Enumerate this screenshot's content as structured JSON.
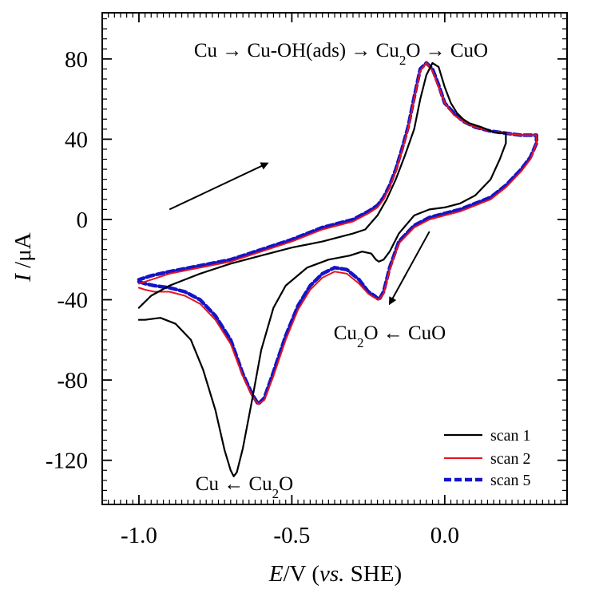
{
  "chart_data": {
    "type": "line",
    "xlabel": {
      "italic": "E",
      "rest": "/V (",
      "italic2": "vs.",
      "tail": " SHE)"
    },
    "ylabel": {
      "italic": "I",
      "rest": " /μA"
    },
    "xlim": [
      -1.12,
      0.4
    ],
    "ylim": [
      -142,
      103
    ],
    "x_ticks": [
      -1.0,
      -0.5,
      0.0
    ],
    "x_tick_labels": [
      "-1.0",
      "-0.5",
      "0.0"
    ],
    "y_ticks": [
      -120,
      -80,
      -40,
      0,
      40,
      80
    ],
    "y_tick_labels": [
      "-120",
      "-80",
      "-40",
      "0",
      "40",
      "80"
    ],
    "grid": false,
    "legend_position": "bottom-right",
    "colors": {
      "scan1": "#000000",
      "scan2": "#e8141e",
      "scan5": "#1414c8"
    },
    "annotations": {
      "oxidation": {
        "a": "Cu → Cu-OH(ads) → Cu",
        "sub": "2",
        "b": "O → CuO"
      },
      "reduction1": {
        "a": "Cu",
        "sub": "2",
        "b": "O ← CuO"
      },
      "reduction2": {
        "a": "Cu ← Cu",
        "sub": "2",
        "b": "O"
      }
    },
    "arrows": [
      {
        "from": [
          -0.9,
          5
        ],
        "to": [
          -0.58,
          28
        ]
      },
      {
        "from": [
          -0.05,
          -6
        ],
        "to": [
          -0.18,
          -42
        ]
      }
    ],
    "series": [
      {
        "name": "scan 1",
        "style": "solid",
        "width": 2.2,
        "x": [
          -1.0,
          -1.0,
          -0.98,
          -0.93,
          -0.88,
          -0.83,
          -0.79,
          -0.75,
          -0.72,
          -0.7,
          -0.69,
          -0.68,
          -0.66,
          -0.63,
          -0.6,
          -0.56,
          -0.52,
          -0.45,
          -0.38,
          -0.31,
          -0.27,
          -0.24,
          -0.225,
          -0.215,
          -0.2,
          -0.18,
          -0.15,
          -0.1,
          -0.05,
          0.0,
          0.05,
          0.1,
          0.15,
          0.18,
          0.2,
          0.2,
          0.18,
          0.15,
          0.12,
          0.1,
          0.08,
          0.06,
          0.04,
          0.02,
          0.0,
          -0.02,
          -0.04,
          -0.06,
          -0.08,
          -0.1,
          -0.13,
          -0.16,
          -0.19,
          -0.22,
          -0.26,
          -0.3,
          -0.4,
          -0.5,
          -0.6,
          -0.7,
          -0.8,
          -0.9,
          -0.96,
          -1.0
        ],
        "y": [
          -50,
          -50,
          -50,
          -49,
          -52,
          -60,
          -75,
          -95,
          -115,
          -125,
          -128,
          -126,
          -114,
          -90,
          -65,
          -44,
          -33,
          -24,
          -20,
          -18,
          -16,
          -17,
          -20,
          -21,
          -20,
          -16,
          -7,
          2,
          5,
          6,
          8,
          12,
          20,
          30,
          38,
          43,
          43,
          44,
          46,
          47,
          48,
          50,
          53,
          58,
          66,
          76,
          78,
          72,
          60,
          45,
          32,
          20,
          10,
          2,
          -5,
          -7,
          -11,
          -14,
          -18,
          -22,
          -27,
          -33,
          -38,
          -44
        ]
      },
      {
        "name": "scan 2",
        "style": "solid",
        "width": 2.0,
        "x": [
          -1.0,
          -0.98,
          -0.95,
          -0.9,
          -0.85,
          -0.8,
          -0.75,
          -0.7,
          -0.66,
          -0.63,
          -0.61,
          -0.59,
          -0.56,
          -0.52,
          -0.48,
          -0.44,
          -0.4,
          -0.36,
          -0.32,
          -0.28,
          -0.25,
          -0.23,
          -0.215,
          -0.2,
          -0.18,
          -0.15,
          -0.1,
          -0.05,
          0.0,
          0.05,
          0.1,
          0.15,
          0.2,
          0.25,
          0.28,
          0.3,
          0.3,
          0.28,
          0.25,
          0.2,
          0.15,
          0.1,
          0.06,
          0.03,
          0.0,
          -0.02,
          -0.04,
          -0.06,
          -0.08,
          -0.1,
          -0.12,
          -0.14,
          -0.16,
          -0.18,
          -0.2,
          -0.22,
          -0.25,
          -0.3,
          -0.4,
          -0.5,
          -0.6,
          -0.7,
          -0.8,
          -0.9,
          -0.96,
          -1.0
        ],
        "y": [
          -34,
          -35,
          -36,
          -36,
          -38,
          -42,
          -50,
          -62,
          -78,
          -88,
          -92,
          -90,
          -78,
          -60,
          -45,
          -35,
          -29,
          -26,
          -27,
          -32,
          -37,
          -39,
          -40,
          -37,
          -25,
          -12,
          -4,
          0,
          2,
          4,
          7,
          10,
          16,
          24,
          30,
          38,
          42,
          42,
          42,
          43,
          44,
          46,
          49,
          52,
          58,
          66,
          74,
          78,
          74,
          60,
          45,
          34,
          24,
          16,
          10,
          6,
          3,
          -1,
          -5,
          -11,
          -16,
          -21,
          -24,
          -27,
          -30,
          -32
        ]
      },
      {
        "name": "scan 5",
        "style": "dashed",
        "width": 4.5,
        "x": [
          -1.0,
          -0.98,
          -0.95,
          -0.9,
          -0.85,
          -0.8,
          -0.75,
          -0.7,
          -0.66,
          -0.63,
          -0.61,
          -0.59,
          -0.56,
          -0.52,
          -0.48,
          -0.44,
          -0.4,
          -0.36,
          -0.32,
          -0.28,
          -0.25,
          -0.23,
          -0.215,
          -0.2,
          -0.18,
          -0.15,
          -0.1,
          -0.05,
          0.0,
          0.05,
          0.1,
          0.15,
          0.2,
          0.25,
          0.28,
          0.3,
          0.3,
          0.28,
          0.25,
          0.2,
          0.15,
          0.1,
          0.06,
          0.03,
          0.0,
          -0.02,
          -0.04,
          -0.06,
          -0.08,
          -0.1,
          -0.12,
          -0.14,
          -0.16,
          -0.18,
          -0.2,
          -0.22,
          -0.25,
          -0.3,
          -0.4,
          -0.5,
          -0.6,
          -0.7,
          -0.8,
          -0.9,
          -0.96,
          -1.0
        ],
        "y": [
          -31,
          -32,
          -33,
          -34,
          -36,
          -40,
          -48,
          -60,
          -77,
          -87,
          -92,
          -89,
          -76,
          -58,
          -43,
          -33,
          -27,
          -24,
          -25,
          -30,
          -36,
          -38,
          -40,
          -36,
          -24,
          -11,
          -3,
          1,
          3,
          5,
          8,
          11,
          17,
          25,
          31,
          38,
          42,
          42,
          42,
          43,
          44,
          46,
          49,
          53,
          58,
          67,
          75,
          78,
          75,
          61,
          46,
          35,
          25,
          17,
          11,
          7,
          4,
          0,
          -4,
          -10,
          -15,
          -20,
          -23,
          -26,
          -28,
          -30
        ]
      }
    ]
  }
}
